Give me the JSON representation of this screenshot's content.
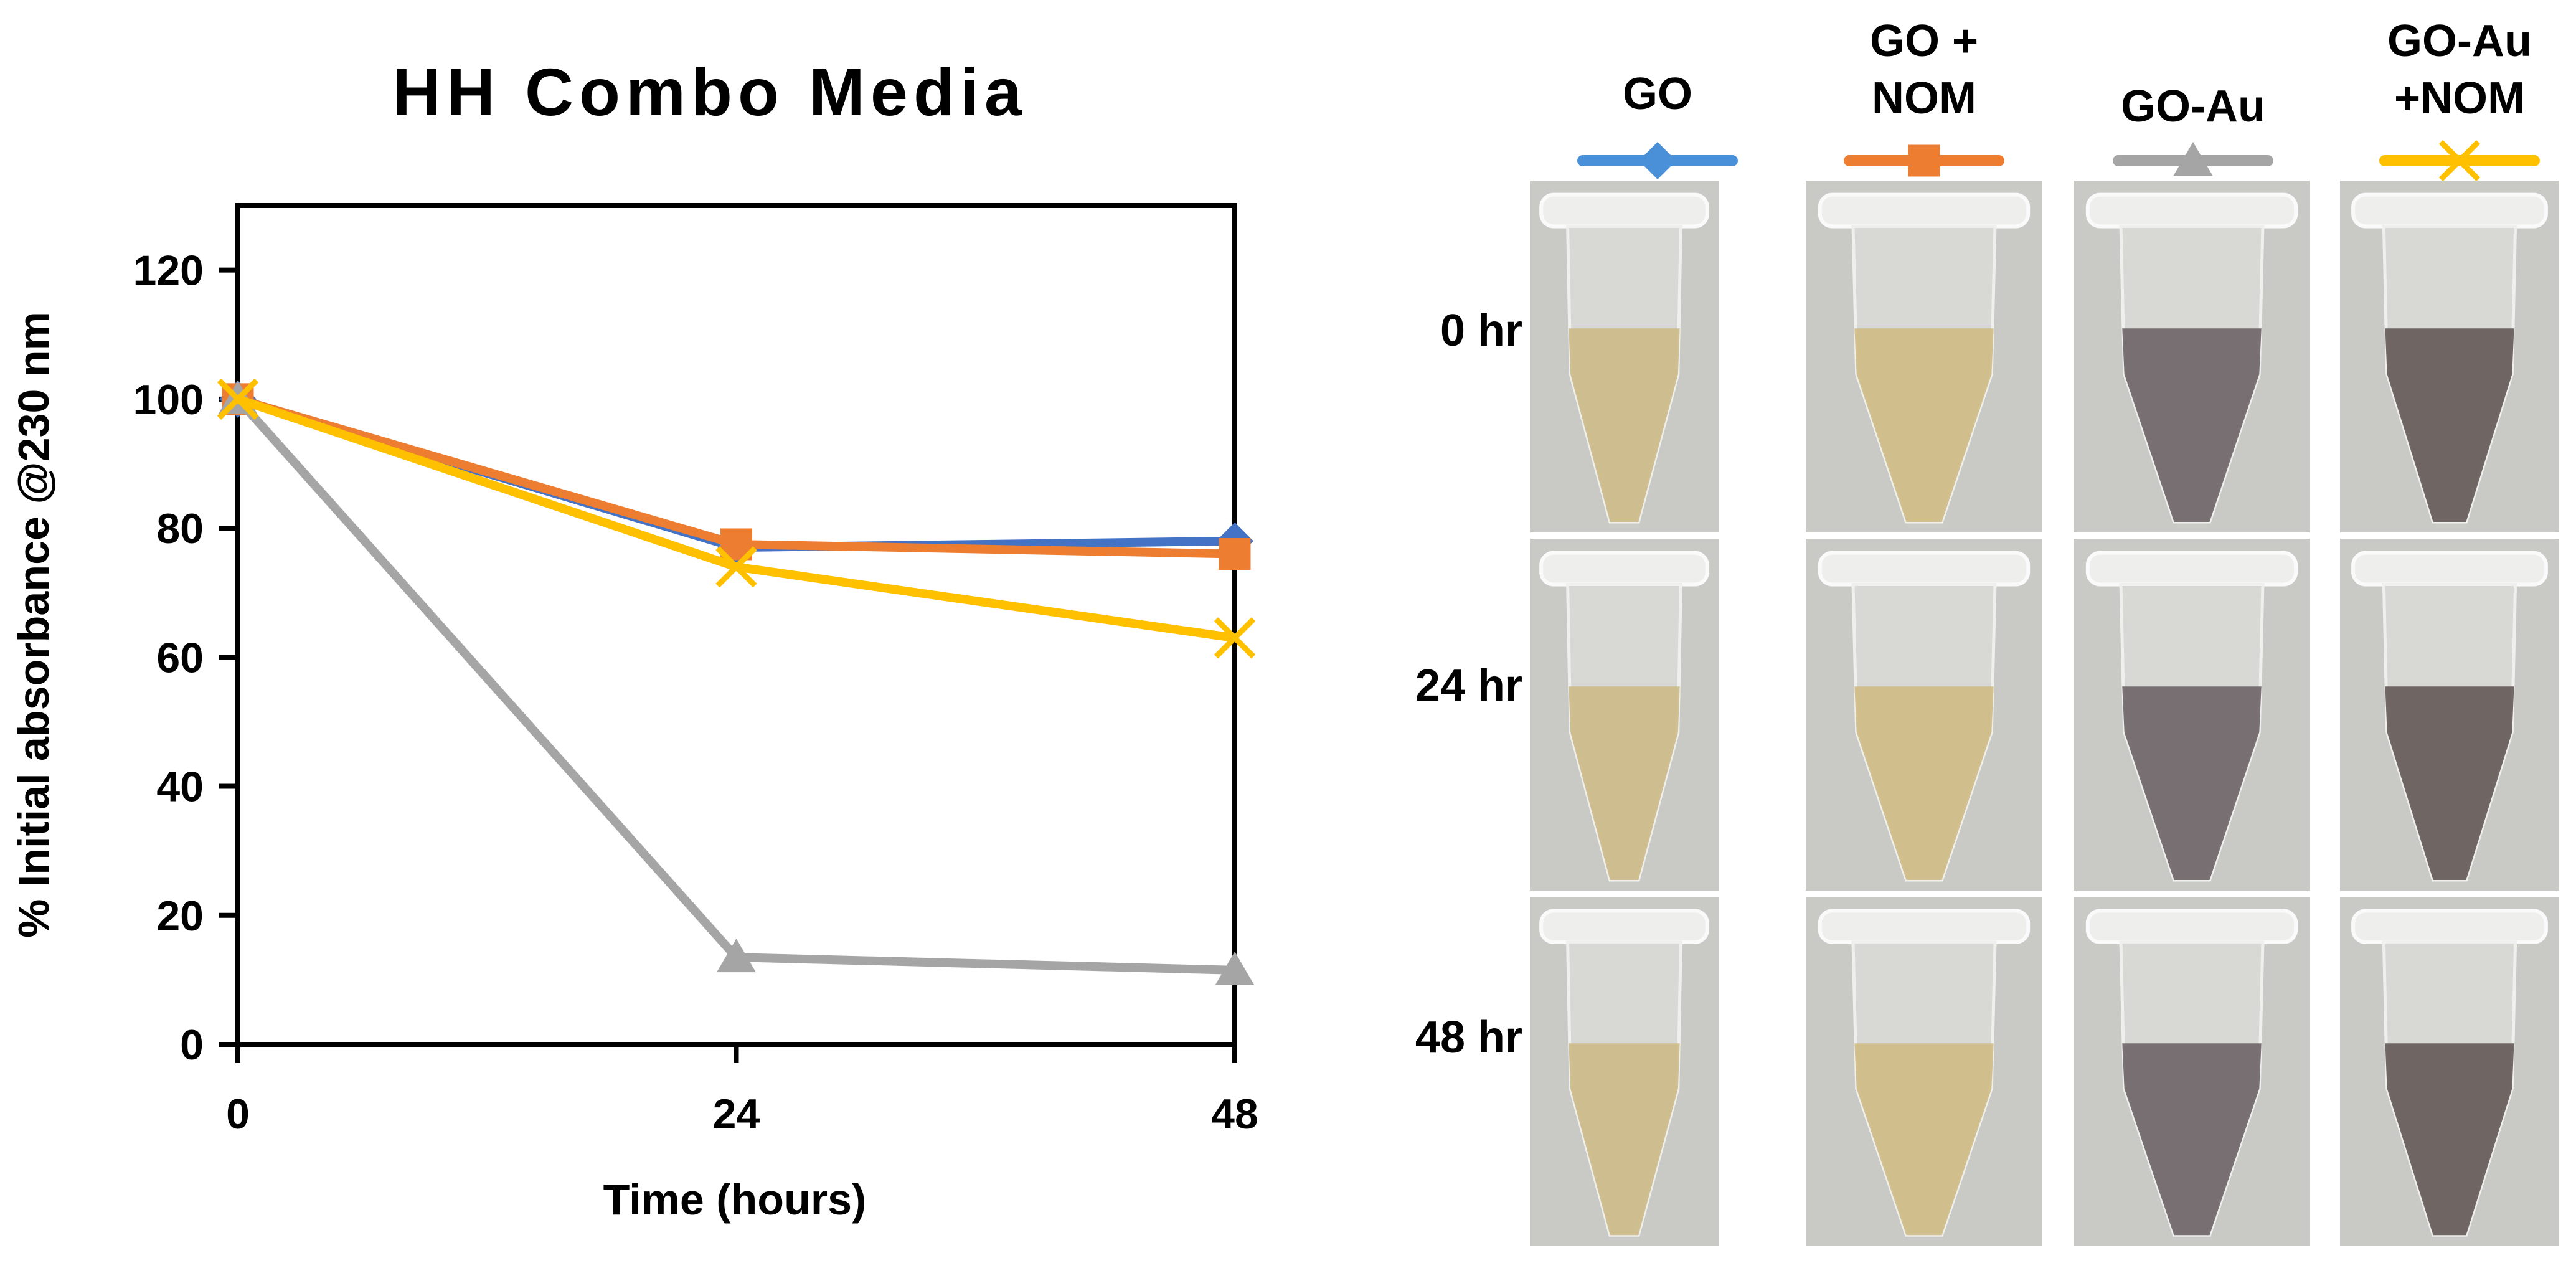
{
  "chart_data": {
    "type": "line",
    "title": "HH Combo Media",
    "xlabel": "Time (hours)",
    "ylabel": "% Initial absorbance @230 nm",
    "x": [
      0,
      24,
      48
    ],
    "xticks": [
      "0",
      "24",
      "48"
    ],
    "xlim": [
      0,
      48
    ],
    "ylim": [
      0,
      130
    ],
    "yticks": [
      "0",
      "20",
      "40",
      "60",
      "80",
      "100",
      "120"
    ],
    "grid": false,
    "series": [
      {
        "name": "GO",
        "color": "#4472C4",
        "marker": "diamond",
        "values": [
          100,
          77,
          78
        ]
      },
      {
        "name": "GO + NOM",
        "color": "#ED7D31",
        "marker": "square",
        "values": [
          100,
          77.5,
          76
        ]
      },
      {
        "name": "GO-Au",
        "color": "#A5A5A5",
        "marker": "triangle",
        "values": [
          100,
          13.5,
          11.5
        ]
      },
      {
        "name": "GO-Au +NOM",
        "color": "#FFC000",
        "marker": "x",
        "values": [
          100,
          74,
          63
        ]
      }
    ]
  },
  "photo_panel": {
    "columns": [
      {
        "line1": "GO",
        "line2": "",
        "color": "#4a90d9",
        "marker": "diamond",
        "liquid": "#cdbb88"
      },
      {
        "line1": "GO +",
        "line2": "NOM",
        "color": "#ED7D31",
        "marker": "square",
        "liquid": "#cfbd87"
      },
      {
        "line1": "GO-Au",
        "line2": "",
        "color": "#A5A5A5",
        "marker": "triangle",
        "liquid": "#6f6668"
      },
      {
        "line1": "GO-Au",
        "line2": "+NOM",
        "color": "#FFC000",
        "marker": "x",
        "liquid": "#665b59"
      }
    ],
    "rows": [
      "0 hr",
      "24 hr",
      "48 hr"
    ]
  }
}
